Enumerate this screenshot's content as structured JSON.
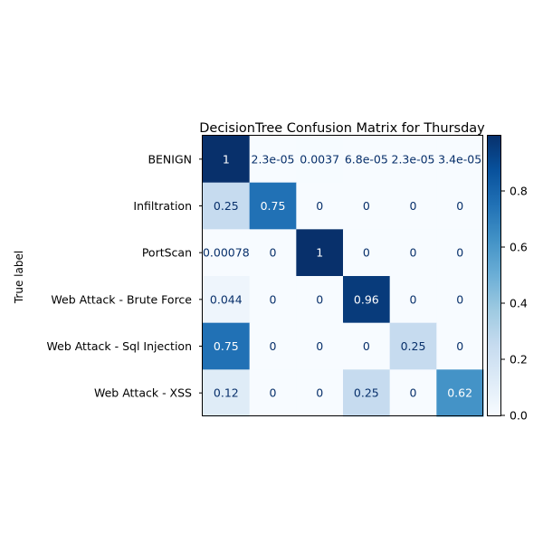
{
  "chart_data": {
    "type": "heatmap",
    "title": "DecisionTree Confusion Matrix for Thursday",
    "ylabel": "True label",
    "xlabel": "",
    "row_labels": [
      "BENIGN",
      "Infiltration",
      "PortScan",
      "Web Attack - Brute Force",
      "Web Attack - Sql Injection",
      "Web Attack - XSS"
    ],
    "col_labels": [],
    "values": [
      [
        1,
        2.3e-05,
        0.0037,
        6.8e-05,
        2.3e-05,
        3.4e-05
      ],
      [
        0.25,
        0.75,
        0,
        0,
        0,
        0
      ],
      [
        0.00078,
        0,
        1,
        0,
        0,
        0
      ],
      [
        0.044,
        0,
        0,
        0.96,
        0,
        0
      ],
      [
        0.75,
        0,
        0,
        0,
        0.25,
        0
      ],
      [
        0.12,
        0,
        0,
        0.25,
        0,
        0.62
      ]
    ],
    "cell_labels": [
      [
        "1",
        "2.3e-05",
        "0.0037",
        "6.8e-05",
        "2.3e-05",
        "3.4e-05"
      ],
      [
        "0.25",
        "0.75",
        "0",
        "0",
        "0",
        "0"
      ],
      [
        "0.00078",
        "0",
        "1",
        "0",
        "0",
        "0"
      ],
      [
        "0.044",
        "0",
        "0",
        "0.96",
        "0",
        "0"
      ],
      [
        "0.75",
        "0",
        "0",
        "0",
        "0.25",
        "0"
      ],
      [
        "0.12",
        "0",
        "0",
        "0.25",
        "0",
        "0.62"
      ]
    ],
    "colormap": "Blues",
    "colorbar": {
      "range": [
        0,
        1
      ],
      "ticks": [
        0.0,
        0.2,
        0.4,
        0.6,
        0.8
      ],
      "tick_labels": [
        "0.0",
        "0.2",
        "0.4",
        "0.6",
        "0.8"
      ]
    },
    "text_color_light": "#ffffff",
    "text_color_dark": "#08306b"
  }
}
